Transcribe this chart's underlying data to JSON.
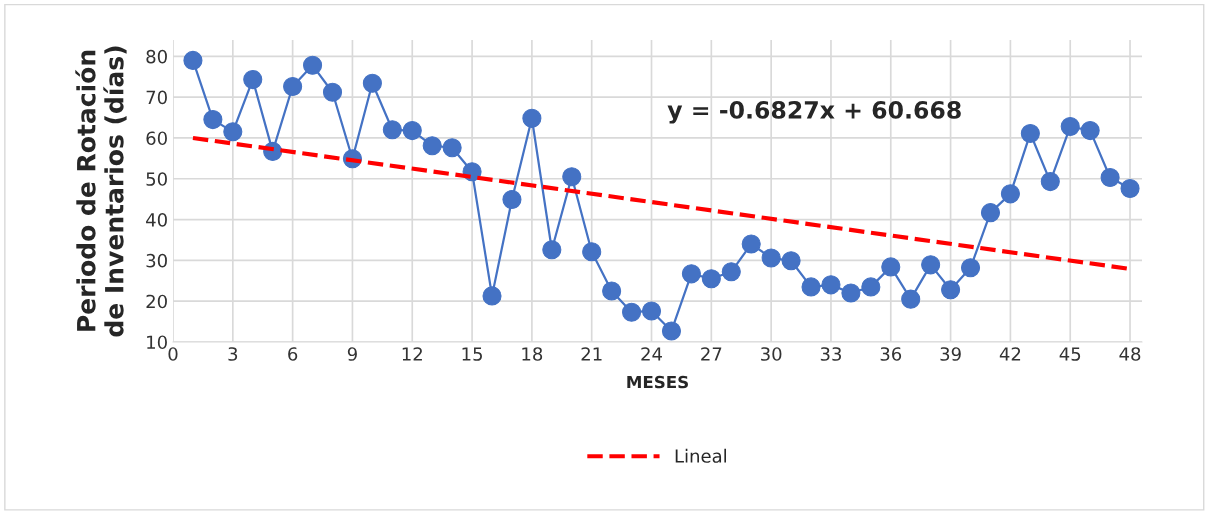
{
  "chart_data": {
    "type": "line",
    "xlabel": "MESES",
    "ylabel": "Periodo de Rotación de Inventarios (días)",
    "xlim": [
      0,
      48.6
    ],
    "xticks": [
      0,
      3,
      6,
      9,
      12,
      15,
      18,
      21,
      24,
      27,
      30,
      33,
      36,
      39,
      42,
      45,
      48
    ],
    "ylim": [
      10,
      84
    ],
    "yticks": [
      10,
      20,
      30,
      40,
      50,
      60,
      70,
      80
    ],
    "grid": true,
    "legend": "bottom",
    "annotations": [
      "y = -0.6827x + 60.668"
    ],
    "series": [
      {
        "color": "#4472c4",
        "marker": "circle",
        "line_style": "solid",
        "x": [
          1,
          2,
          3,
          4,
          5,
          6,
          7,
          8,
          9,
          10,
          11,
          12,
          13,
          14,
          15,
          16,
          17,
          18,
          19,
          20,
          21,
          22,
          23,
          24,
          25,
          26,
          27,
          28,
          29,
          30,
          31,
          32,
          33,
          34,
          35,
          36,
          37,
          38,
          39,
          40,
          41,
          42,
          43,
          44,
          45,
          46,
          47,
          48
        ],
        "values": [
          79,
          64.5,
          61.5,
          74.3,
          56.7,
          72.6,
          77.8,
          71.2,
          54.9,
          73.4,
          62,
          61.8,
          58.1,
          57.6,
          51.7,
          21.3,
          44.9,
          64.8,
          32.6,
          50.5,
          32.1,
          22.5,
          17.3,
          17.6,
          12.7,
          26.7,
          25.5,
          27.2,
          34,
          30.6,
          29.9,
          23.5,
          24,
          22,
          23.5,
          28.4,
          20.5,
          28.9,
          22.8,
          28.2,
          41.7,
          46.3,
          61.1,
          49.3,
          62.8,
          61.8,
          50.3,
          47.6
        ]
      },
      {
        "name": "Lineal",
        "color": "#ff0000",
        "marker": "none",
        "line_style": "dashed",
        "x": [
          1,
          48
        ],
        "values": [
          59.99,
          27.9
        ]
      }
    ]
  }
}
